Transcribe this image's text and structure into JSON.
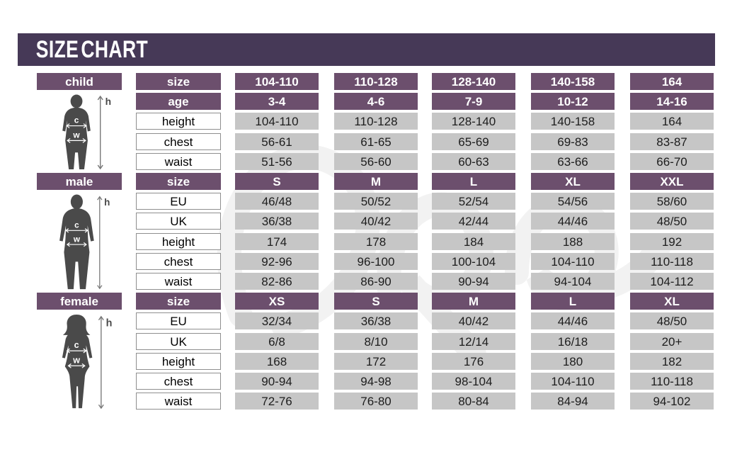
{
  "title": "SIZE CHART",
  "figure_legend": {
    "height_marker": "h",
    "chest_marker": "c",
    "waist_marker": "w"
  },
  "colors": {
    "title_bar": "#463957",
    "header_purple": "#6c4f6d",
    "cell_gray": "#c6c6c6",
    "text_dark": "#1d1d1d",
    "silhouette": "#4a4a4a",
    "background": "#ffffff"
  },
  "chart_data": [
    {
      "type": "table",
      "title": "child",
      "rows": [
        {
          "label": "size",
          "header": true,
          "values": [
            "104-110",
            "110-128",
            "128-140",
            "140-158",
            "164"
          ]
        },
        {
          "label": "age",
          "header": true,
          "values": [
            "3-4",
            "4-6",
            "7-9",
            "10-12",
            "14-16"
          ]
        },
        {
          "label": "height",
          "header": false,
          "values": [
            "104-110",
            "110-128",
            "128-140",
            "140-158",
            "164"
          ]
        },
        {
          "label": "chest",
          "header": false,
          "values": [
            "56-61",
            "61-65",
            "65-69",
            "69-83",
            "83-87"
          ]
        },
        {
          "label": "waist",
          "header": false,
          "values": [
            "51-56",
            "56-60",
            "60-63",
            "63-66",
            "66-70"
          ]
        }
      ]
    },
    {
      "type": "table",
      "title": "male",
      "rows": [
        {
          "label": "size",
          "header": true,
          "values": [
            "S",
            "M",
            "L",
            "XL",
            "XXL"
          ]
        },
        {
          "label": "EU",
          "header": false,
          "values": [
            "46/48",
            "50/52",
            "52/54",
            "54/56",
            "58/60"
          ]
        },
        {
          "label": "UK",
          "header": false,
          "values": [
            "36/38",
            "40/42",
            "42/44",
            "44/46",
            "48/50"
          ]
        },
        {
          "label": "height",
          "header": false,
          "values": [
            "174",
            "178",
            "184",
            "188",
            "192"
          ]
        },
        {
          "label": "chest",
          "header": false,
          "values": [
            "92-96",
            "96-100",
            "100-104",
            "104-110",
            "110-118"
          ]
        },
        {
          "label": "waist",
          "header": false,
          "values": [
            "82-86",
            "86-90",
            "90-94",
            "94-104",
            "104-112"
          ]
        }
      ]
    },
    {
      "type": "table",
      "title": "female",
      "rows": [
        {
          "label": "size",
          "header": true,
          "values": [
            "XS",
            "S",
            "M",
            "L",
            "XL"
          ]
        },
        {
          "label": "EU",
          "header": false,
          "values": [
            "32/34",
            "36/38",
            "40/42",
            "44/46",
            "48/50"
          ]
        },
        {
          "label": "UK",
          "header": false,
          "values": [
            "6/8",
            "8/10",
            "12/14",
            "16/18",
            "20+"
          ]
        },
        {
          "label": "height",
          "header": false,
          "values": [
            "168",
            "172",
            "176",
            "180",
            "182"
          ]
        },
        {
          "label": "chest",
          "header": false,
          "values": [
            "90-94",
            "94-98",
            "98-104",
            "104-110",
            "110-118"
          ]
        },
        {
          "label": "waist",
          "header": false,
          "values": [
            "72-76",
            "76-80",
            "80-84",
            "84-94",
            "94-102"
          ]
        }
      ]
    }
  ]
}
